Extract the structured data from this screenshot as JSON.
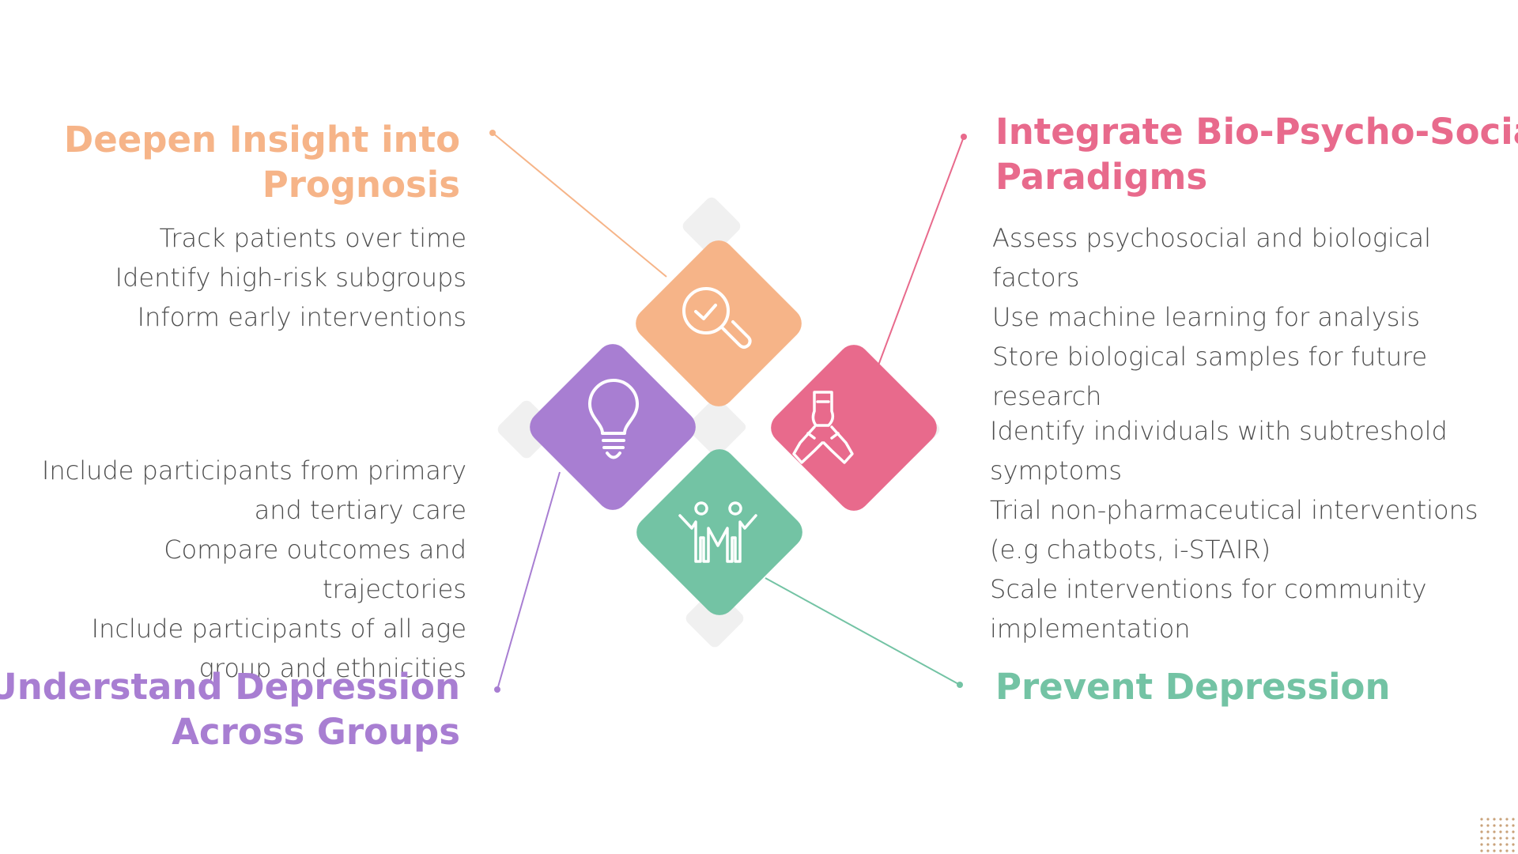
{
  "colors": {
    "orange": "#F6B488",
    "pink": "#E86A8C",
    "purple": "#A87ED2",
    "green": "#73C3A4",
    "text": "#4D4D4D",
    "shadow": "#F0F0F0",
    "dots": "#C9A27A"
  },
  "quadrants": {
    "prognosis": {
      "title": [
        "Deepen Insight into",
        "Prognosis"
      ],
      "items": [
        "Track patients over time",
        "Identify high-risk subgroups",
        "Inform early interventions"
      ],
      "icon": "magnifier-check-icon"
    },
    "biopsychosocial": {
      "title": [
        "Integrate Bio-Psycho-Social",
        "Paradigms"
      ],
      "items": [
        "Assess psychosocial and biological factors",
        "Use machine learning for analysis",
        "Store biological samples for future research"
      ],
      "icon": "joined-hands-icon"
    },
    "groups": {
      "title": [
        "Understand Depression",
        "Across Groups"
      ],
      "items": [
        "Include participants from primary and tertiary care",
        "Compare outcomes and trajectories",
        "Include participants of all age group and ethnicities"
      ],
      "icon": "lightbulb-icon"
    },
    "prevent": {
      "title": [
        "Prevent Depression"
      ],
      "items": [
        "Identify individuals with subtreshold symptoms",
        "Trial non-pharmaceutical interventions (e.g chatbots, i-STAIR)",
        "Scale interventions for community implementation"
      ],
      "icon": "two-people-icon"
    }
  }
}
